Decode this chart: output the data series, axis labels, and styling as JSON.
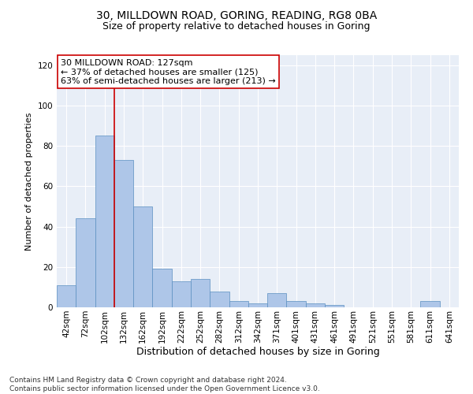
{
  "title1": "30, MILLDOWN ROAD, GORING, READING, RG8 0BA",
  "title2": "Size of property relative to detached houses in Goring",
  "xlabel": "Distribution of detached houses by size in Goring",
  "ylabel": "Number of detached properties",
  "bin_labels": [
    "42sqm",
    "72sqm",
    "102sqm",
    "132sqm",
    "162sqm",
    "192sqm",
    "222sqm",
    "252sqm",
    "282sqm",
    "312sqm",
    "342sqm",
    "371sqm",
    "401sqm",
    "431sqm",
    "461sqm",
    "491sqm",
    "521sqm",
    "551sqm",
    "581sqm",
    "611sqm",
    "641sqm"
  ],
  "bar_heights": [
    11,
    44,
    85,
    73,
    50,
    19,
    13,
    14,
    8,
    3,
    2,
    7,
    3,
    2,
    1,
    0,
    0,
    0,
    0,
    3,
    0
  ],
  "bar_color": "#aec6e8",
  "bar_edge_color": "#5a8fc0",
  "vline_color": "#cc0000",
  "annotation_line1": "30 MILLDOWN ROAD: 127sqm",
  "annotation_line2": "← 37% of detached houses are smaller (125)",
  "annotation_line3": "63% of semi-detached houses are larger (213) →",
  "annotation_box_color": "#ffffff",
  "annotation_box_edge_color": "#cc0000",
  "ylim": [
    0,
    125
  ],
  "yticks": [
    0,
    20,
    40,
    60,
    80,
    100,
    120
  ],
  "background_color": "#e8eef7",
  "grid_color": "#d0d8e8",
  "footer_text": "Contains HM Land Registry data © Crown copyright and database right 2024.\nContains public sector information licensed under the Open Government Licence v3.0.",
  "title1_fontsize": 10,
  "title2_fontsize": 9,
  "xlabel_fontsize": 9,
  "ylabel_fontsize": 8,
  "tick_fontsize": 7.5,
  "annotation_fontsize": 8,
  "footer_fontsize": 6.5
}
